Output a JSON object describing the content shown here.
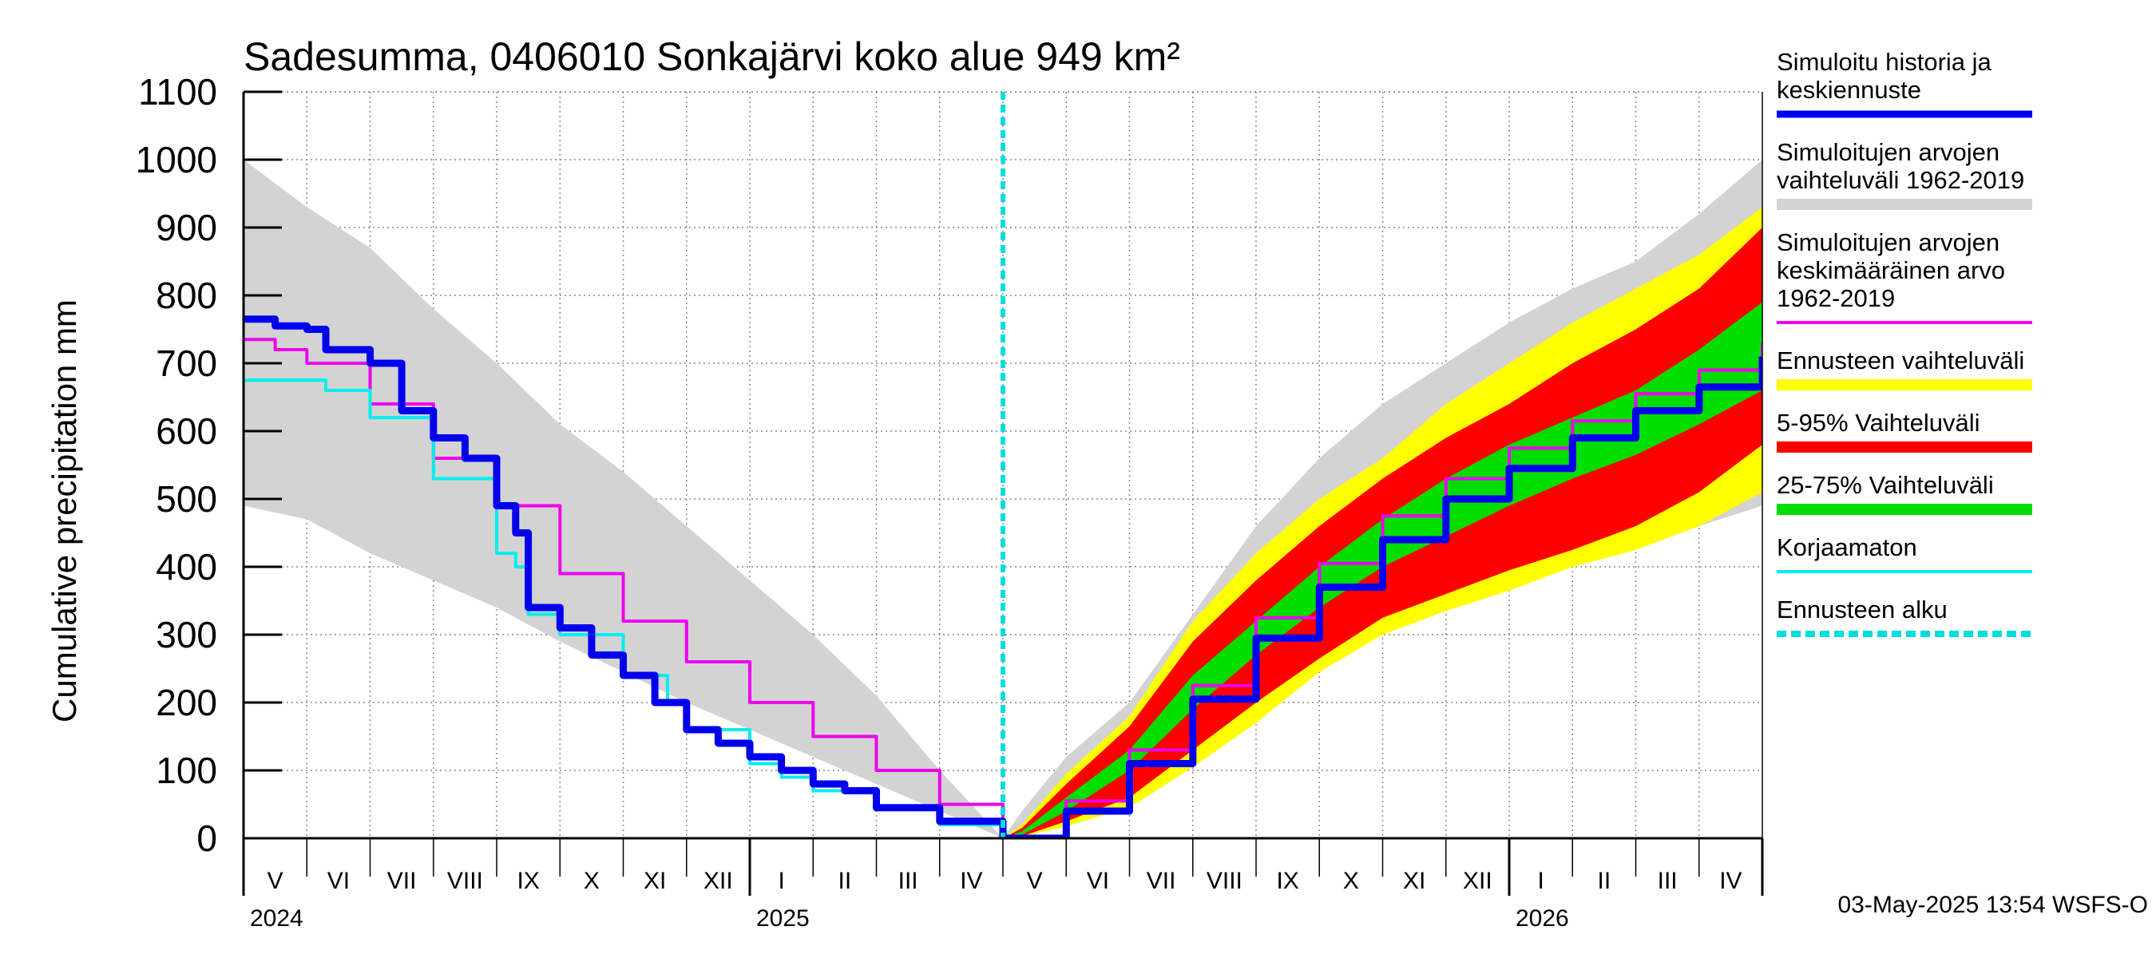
{
  "chart_data": {
    "type": "area",
    "title": "Sadesumma, 0406010 Sonkajärvi koko alue 949 km²",
    "ylabel": "Cumulative precipitation   mm",
    "xlabel": "",
    "ylim": [
      0,
      1100
    ],
    "yticks": [
      0,
      100,
      200,
      300,
      400,
      500,
      600,
      700,
      800,
      900,
      1000,
      1100
    ],
    "grid": true,
    "x_unit": "month index from May 2024",
    "xlim": [
      0,
      24
    ],
    "month_labels": [
      "V",
      "VI",
      "VII",
      "VIII",
      "IX",
      "X",
      "XI",
      "XII",
      "I",
      "II",
      "III",
      "IV",
      "V",
      "VI",
      "VII",
      "VIII",
      "IX",
      "X",
      "XI",
      "XII",
      "I",
      "II",
      "III",
      "IV"
    ],
    "year_labels": [
      {
        "label": "2024",
        "x": 0
      },
      {
        "label": "2025",
        "x": 8
      },
      {
        "label": "2026",
        "x": 20
      }
    ],
    "forecast_start_x": 12.0,
    "legend_position": "right",
    "colors": {
      "history_band": "#d3d3d3",
      "forecast_range": "#ffff00",
      "p5_95": "#ff0000",
      "p25_75": "#00dd00",
      "simulated": "#0000ee",
      "mean": "#ee00ee",
      "uncorrected": "#00eeee",
      "forecast_start": "#00dddd"
    },
    "series": [
      {
        "name": "Simuloitujen arvojen vaihteluväli 1962-2019",
        "key": "history_band",
        "kind": "band",
        "x": [
          0,
          1,
          2,
          3,
          4,
          5,
          6,
          7,
          8,
          9,
          10,
          11,
          12,
          12.3,
          13,
          14,
          15,
          16,
          17,
          18,
          19,
          20,
          21,
          22,
          23,
          24
        ],
        "lower": [
          490,
          470,
          420,
          380,
          340,
          290,
          245,
          200,
          160,
          120,
          80,
          40,
          0,
          5,
          25,
          55,
          115,
          185,
          255,
          310,
          345,
          375,
          410,
          430,
          460,
          490
        ],
        "upper": [
          1000,
          930,
          870,
          780,
          700,
          610,
          540,
          460,
          380,
          300,
          210,
          100,
          0,
          40,
          120,
          200,
          330,
          460,
          560,
          640,
          700,
          760,
          810,
          850,
          920,
          1000
        ]
      },
      {
        "name": "Ennusteen vaihteluväli",
        "key": "forecast_range",
        "kind": "band",
        "x": [
          12,
          12.3,
          13,
          14,
          15,
          16,
          17,
          18,
          19,
          20,
          21,
          22,
          23,
          24
        ],
        "lower": [
          0,
          2,
          18,
          45,
          105,
          170,
          245,
          300,
          335,
          365,
          400,
          425,
          460,
          510
        ],
        "upper": [
          0,
          20,
          95,
          180,
          320,
          420,
          500,
          560,
          640,
          700,
          760,
          810,
          860,
          930
        ]
      },
      {
        "name": "5-95% Vaihteluväli",
        "key": "p5_95",
        "kind": "band",
        "x": [
          12,
          12.3,
          13,
          14,
          15,
          16,
          17,
          18,
          19,
          20,
          21,
          22,
          23,
          24
        ],
        "lower": [
          0,
          3,
          25,
          60,
          130,
          200,
          265,
          325,
          360,
          395,
          425,
          460,
          510,
          580
        ],
        "upper": [
          0,
          15,
          80,
          165,
          290,
          380,
          460,
          530,
          590,
          640,
          700,
          750,
          810,
          900
        ]
      },
      {
        "name": "25-75% Vaihteluväli",
        "key": "p25_75",
        "kind": "band",
        "x": [
          12,
          12.3,
          13,
          14,
          15,
          16,
          17,
          18,
          19,
          20,
          21,
          22,
          23,
          24
        ],
        "lower": [
          0,
          5,
          40,
          100,
          190,
          270,
          340,
          400,
          445,
          490,
          530,
          565,
          610,
          660
        ],
        "upper": [
          0,
          10,
          60,
          130,
          240,
          320,
          400,
          470,
          530,
          580,
          620,
          660,
          720,
          790
        ]
      },
      {
        "name": "Simuloitujen arvojen keskimääräinen arvo 1962-2019",
        "key": "mean",
        "kind": "line",
        "x": [
          0,
          0.5,
          1,
          2,
          3,
          4,
          5,
          6,
          7,
          8,
          9,
          10,
          11,
          12,
          13,
          14,
          15,
          16,
          17,
          18,
          19,
          20,
          21,
          22,
          23,
          24
        ],
        "values": [
          735,
          720,
          700,
          640,
          560,
          490,
          390,
          320,
          260,
          200,
          150,
          100,
          50,
          0,
          55,
          130,
          225,
          325,
          405,
          475,
          530,
          575,
          615,
          655,
          690,
          730
        ]
      },
      {
        "name": "Korjaamaton",
        "key": "uncorrected",
        "kind": "line",
        "x": [
          0,
          1,
          1.3,
          2,
          3,
          4,
          4.3,
          4.5,
          5,
          6,
          6.7,
          7,
          8,
          8.5,
          9,
          10,
          11,
          12
        ],
        "values": [
          675,
          675,
          660,
          620,
          530,
          420,
          400,
          330,
          300,
          240,
          200,
          160,
          110,
          90,
          70,
          45,
          20,
          0
        ]
      },
      {
        "name": "Simuloitu historia ja keskiennuste",
        "key": "simulated",
        "kind": "line",
        "x": [
          0,
          0.5,
          1,
          1.3,
          2,
          2.5,
          3,
          3.5,
          4,
          4.3,
          4.5,
          5,
          5.5,
          6,
          6.5,
          7,
          7.5,
          8,
          8.5,
          9,
          9.5,
          10,
          11,
          12,
          13,
          14,
          15,
          16,
          17,
          18,
          19,
          20,
          21,
          22,
          23,
          24
        ],
        "values": [
          765,
          755,
          750,
          720,
          700,
          630,
          590,
          560,
          490,
          450,
          340,
          310,
          270,
          240,
          200,
          160,
          140,
          120,
          100,
          80,
          70,
          45,
          25,
          0,
          40,
          110,
          205,
          295,
          370,
          440,
          500,
          545,
          590,
          630,
          665,
          710
        ]
      }
    ]
  },
  "legend": {
    "items": [
      {
        "key": "simulated",
        "lines": [
          "Simuloitu historia ja",
          "keskiennuste"
        ]
      },
      {
        "key": "history_band",
        "lines": [
          "Simuloitujen arvojen",
          "vaihteluväli 1962-2019"
        ]
      },
      {
        "key": "mean",
        "lines": [
          "Simuloitujen arvojen",
          "keskimääräinen arvo",
          "   1962-2019"
        ]
      },
      {
        "key": "forecast_range",
        "lines": [
          "Ennusteen vaihteluväli"
        ]
      },
      {
        "key": "p5_95",
        "lines": [
          "5-95% Vaihteluväli"
        ]
      },
      {
        "key": "p25_75",
        "lines": [
          "25-75% Vaihteluväli"
        ]
      },
      {
        "key": "uncorrected",
        "lines": [
          "Korjaamaton"
        ]
      },
      {
        "key": "forecast_start",
        "lines": [
          "Ennusteen alku"
        ]
      }
    ]
  },
  "footer": {
    "timestamp": "03-May-2025 13:54 WSFS-O"
  }
}
